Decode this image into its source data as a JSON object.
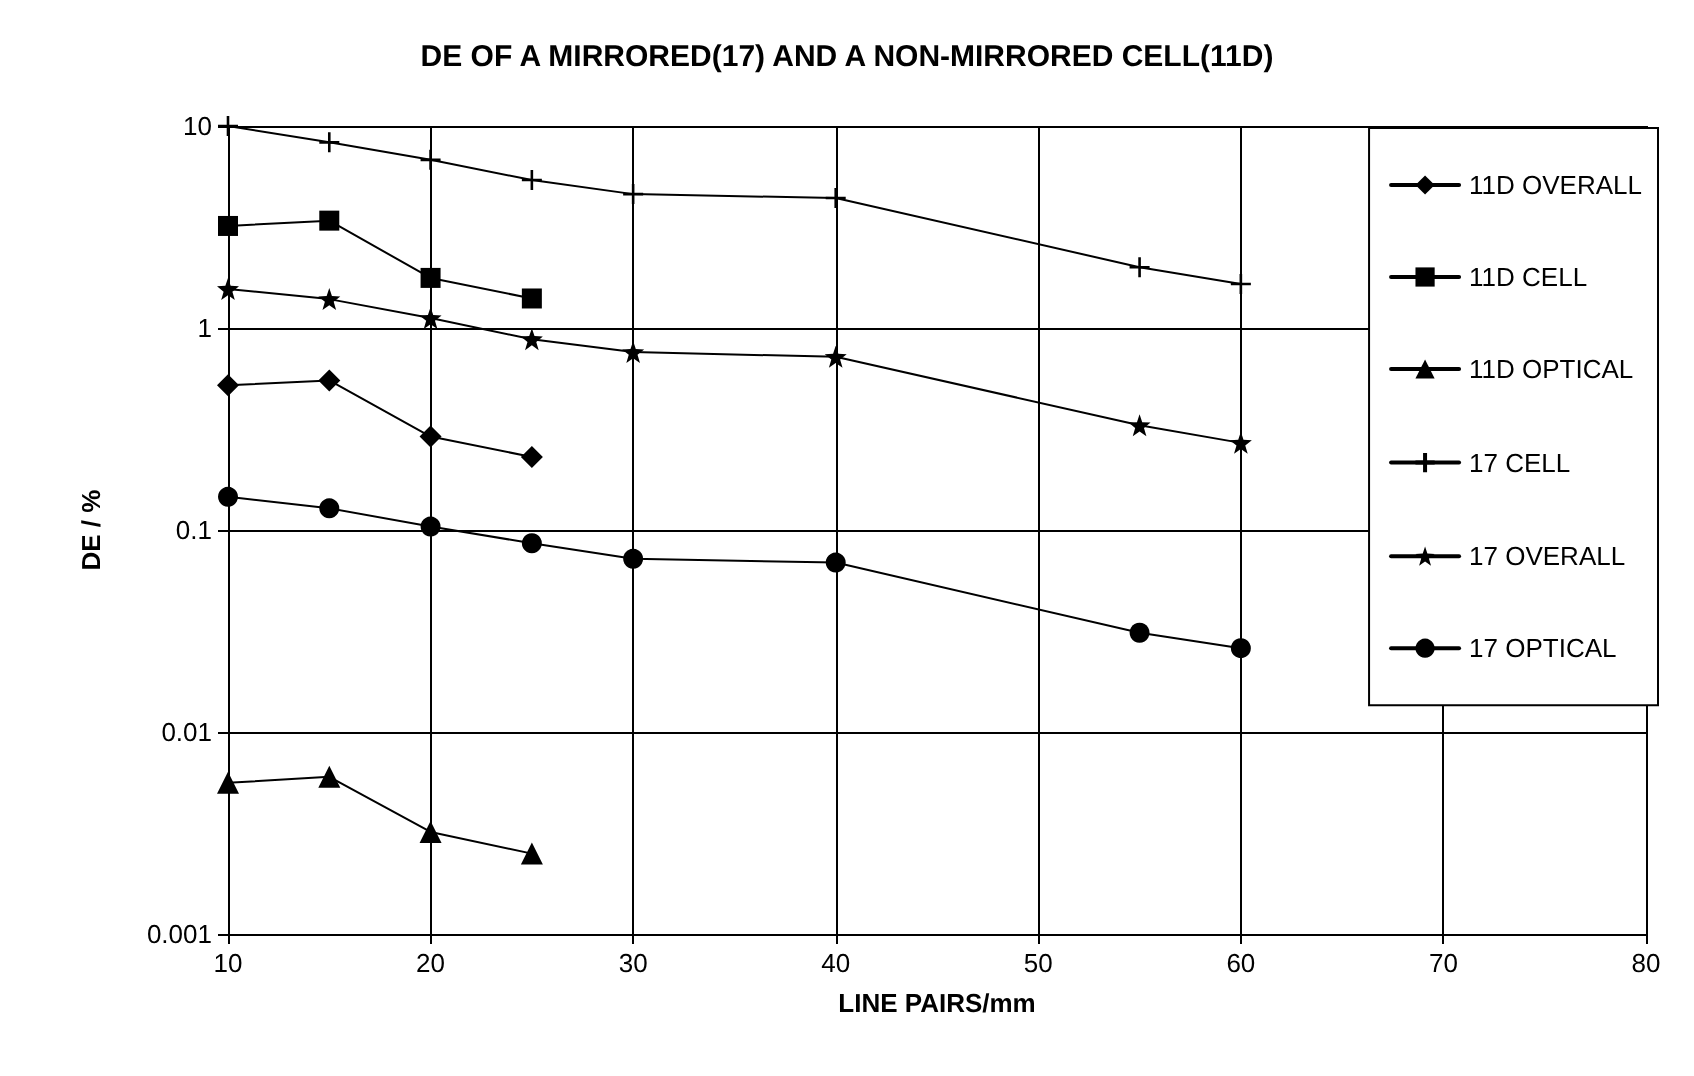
{
  "chart_data": {
    "type": "line",
    "title": "DE OF A MIRRORED(17) AND A NON-MIRRORED CELL(11D)",
    "xlabel": "LINE PAIRS/mm",
    "ylabel": "DE / %",
    "x": [
      10,
      15,
      20,
      25,
      30,
      40,
      55,
      60
    ],
    "xlim": [
      10,
      80
    ],
    "xticks": [
      10,
      20,
      30,
      40,
      50,
      60,
      70,
      80
    ],
    "log": "y",
    "ylim": [
      0.001,
      10
    ],
    "yticks": [
      0.001,
      0.01,
      0.1,
      1,
      10
    ],
    "grid": true,
    "legend": "top right",
    "line_style": "solid",
    "series": [
      {
        "name": "11D OVERALL",
        "color": "#000000",
        "marker": "diamond",
        "values": [
          0.52,
          0.55,
          0.29,
          0.23,
          null,
          null,
          null,
          null
        ]
      },
      {
        "name": "11D CELL",
        "color": "#000000",
        "marker": "square",
        "values": [
          3.2,
          3.4,
          1.77,
          1.4,
          null,
          null,
          null,
          null
        ]
      },
      {
        "name": "11D OPTICAL",
        "color": "#000000",
        "marker": "triangle",
        "values": [
          0.0056,
          0.006,
          0.0032,
          0.0025,
          null,
          null,
          null,
          null
        ]
      },
      {
        "name": "17 CELL",
        "color": "#000000",
        "marker": "cross",
        "values": [
          10,
          8.3,
          6.8,
          5.4,
          4.6,
          4.4,
          2.0,
          1.65
        ]
      },
      {
        "name": "17 OVERALL",
        "color": "#000000",
        "marker": "star",
        "values": [
          1.56,
          1.39,
          1.12,
          0.88,
          0.76,
          0.72,
          0.33,
          0.27
        ]
      },
      {
        "name": "17 OPTICAL",
        "color": "#000000",
        "marker": "circle",
        "values": [
          0.146,
          0.128,
          0.104,
          0.086,
          0.072,
          0.069,
          0.031,
          0.026
        ]
      }
    ]
  }
}
